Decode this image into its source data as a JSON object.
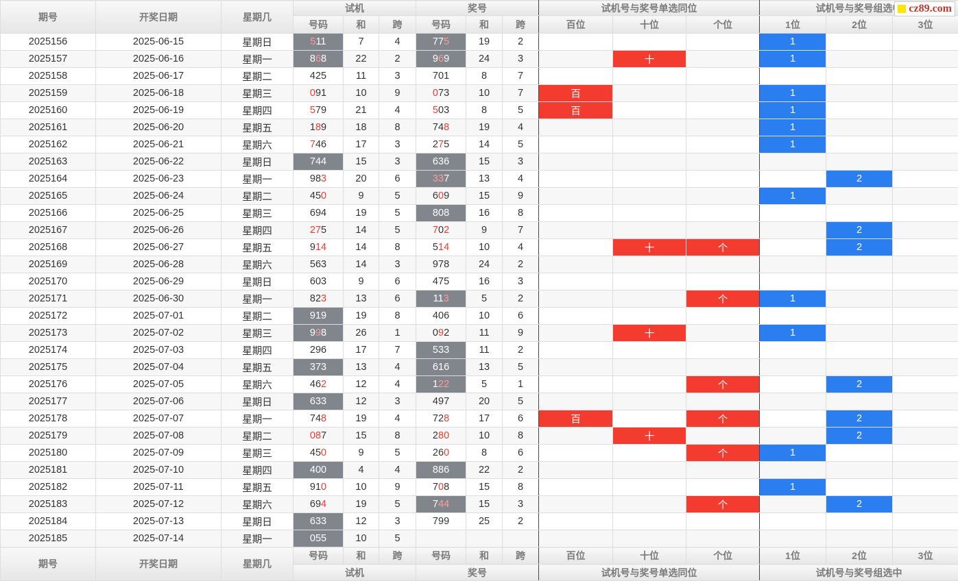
{
  "header": {
    "period": "期号",
    "date": "开奖日期",
    "weekday": "星期几",
    "trial_group": "试机",
    "draw_group": "奖号",
    "single_group": "试机号与奖号单选同位",
    "combo_group": "试机号与奖号组选中",
    "sub": {
      "code": "号码",
      "sum": "和",
      "span": "跨",
      "hundreds": "百位",
      "tens": "十位",
      "units": "个位",
      "one": "1位",
      "two": "2位",
      "three": "3位"
    }
  },
  "watermark": "cz89.com",
  "colors": {
    "match_red": "#f43b2f",
    "combo_blue": "#2a7ef0",
    "cell_gray": "#80868b"
  },
  "rows": [
    {
      "period": "2025156",
      "date": "2025-06-15",
      "weekday": "星期日",
      "t_code": "511",
      "t_hl": [
        0
      ],
      "t_sum": "7",
      "t_span": "4",
      "t_gray": true,
      "d_code": "775",
      "d_hl": [
        2
      ],
      "d_sum": "19",
      "d_span": "2",
      "d_gray": true,
      "s_h": "",
      "s_t": "",
      "s_u": "",
      "c1": "1",
      "c2": "",
      "c3": ""
    },
    {
      "period": "2025157",
      "date": "2025-06-16",
      "weekday": "星期一",
      "t_code": "868",
      "t_hl": [
        1
      ],
      "t_sum": "22",
      "t_span": "2",
      "t_gray": true,
      "d_code": "969",
      "d_hl": [
        1
      ],
      "d_sum": "24",
      "d_span": "3",
      "d_gray": true,
      "s_h": "",
      "s_t": "十",
      "s_u": "",
      "c1": "1",
      "c2": "",
      "c3": ""
    },
    {
      "period": "2025158",
      "date": "2025-06-17",
      "weekday": "星期二",
      "t_code": "425",
      "t_hl": [],
      "t_sum": "11",
      "t_span": "3",
      "t_gray": false,
      "d_code": "701",
      "d_hl": [],
      "d_sum": "8",
      "d_span": "7",
      "d_gray": false,
      "s_h": "",
      "s_t": "",
      "s_u": "",
      "c1": "",
      "c2": "",
      "c3": ""
    },
    {
      "period": "2025159",
      "date": "2025-06-18",
      "weekday": "星期三",
      "t_code": "091",
      "t_hl": [
        0
      ],
      "t_sum": "10",
      "t_span": "9",
      "t_gray": false,
      "d_code": "073",
      "d_hl": [
        0
      ],
      "d_sum": "10",
      "d_span": "7",
      "d_gray": false,
      "s_h": "百",
      "s_t": "",
      "s_u": "",
      "c1": "1",
      "c2": "",
      "c3": ""
    },
    {
      "period": "2025160",
      "date": "2025-06-19",
      "weekday": "星期四",
      "t_code": "579",
      "t_hl": [
        0
      ],
      "t_sum": "21",
      "t_span": "4",
      "t_gray": false,
      "d_code": "503",
      "d_hl": [
        0
      ],
      "d_sum": "8",
      "d_span": "5",
      "d_gray": false,
      "s_h": "百",
      "s_t": "",
      "s_u": "",
      "c1": "1",
      "c2": "",
      "c3": ""
    },
    {
      "period": "2025161",
      "date": "2025-06-20",
      "weekday": "星期五",
      "t_code": "189",
      "t_hl": [
        1
      ],
      "t_sum": "18",
      "t_span": "8",
      "t_gray": false,
      "d_code": "748",
      "d_hl": [
        2
      ],
      "d_sum": "19",
      "d_span": "4",
      "d_gray": false,
      "s_h": "",
      "s_t": "",
      "s_u": "",
      "c1": "1",
      "c2": "",
      "c3": ""
    },
    {
      "period": "2025162",
      "date": "2025-06-21",
      "weekday": "星期六",
      "t_code": "746",
      "t_hl": [
        0
      ],
      "t_sum": "17",
      "t_span": "3",
      "t_gray": false,
      "d_code": "275",
      "d_hl": [
        1
      ],
      "d_sum": "14",
      "d_span": "5",
      "d_gray": false,
      "s_h": "",
      "s_t": "",
      "s_u": "",
      "c1": "1",
      "c2": "",
      "c3": ""
    },
    {
      "period": "2025163",
      "date": "2025-06-22",
      "weekday": "星期日",
      "t_code": "744",
      "t_hl": [],
      "t_sum": "15",
      "t_span": "3",
      "t_gray": true,
      "d_code": "636",
      "d_hl": [],
      "d_sum": "15",
      "d_span": "3",
      "d_gray": true,
      "s_h": "",
      "s_t": "",
      "s_u": "",
      "c1": "",
      "c2": "",
      "c3": ""
    },
    {
      "period": "2025164",
      "date": "2025-06-23",
      "weekday": "星期一",
      "t_code": "983",
      "t_hl": [
        2
      ],
      "t_sum": "20",
      "t_span": "6",
      "t_gray": false,
      "d_code": "337",
      "d_hl": [
        0,
        1
      ],
      "d_sum": "13",
      "d_span": "4",
      "d_gray": true,
      "s_h": "",
      "s_t": "",
      "s_u": "",
      "c1": "",
      "c2": "2",
      "c3": ""
    },
    {
      "period": "2025165",
      "date": "2025-06-24",
      "weekday": "星期二",
      "t_code": "450",
      "t_hl": [
        2
      ],
      "t_sum": "9",
      "t_span": "5",
      "t_gray": false,
      "d_code": "609",
      "d_hl": [
        1
      ],
      "d_sum": "15",
      "d_span": "9",
      "d_gray": false,
      "s_h": "",
      "s_t": "",
      "s_u": "",
      "c1": "1",
      "c2": "",
      "c3": ""
    },
    {
      "period": "2025166",
      "date": "2025-06-25",
      "weekday": "星期三",
      "t_code": "694",
      "t_hl": [],
      "t_sum": "19",
      "t_span": "5",
      "t_gray": false,
      "d_code": "808",
      "d_hl": [],
      "d_sum": "16",
      "d_span": "8",
      "d_gray": true,
      "s_h": "",
      "s_t": "",
      "s_u": "",
      "c1": "",
      "c2": "",
      "c3": ""
    },
    {
      "period": "2025167",
      "date": "2025-06-26",
      "weekday": "星期四",
      "t_code": "275",
      "t_hl": [
        0,
        1
      ],
      "t_sum": "14",
      "t_span": "5",
      "t_gray": false,
      "d_code": "702",
      "d_hl": [
        0,
        2
      ],
      "d_sum": "9",
      "d_span": "7",
      "d_gray": false,
      "s_h": "",
      "s_t": "",
      "s_u": "",
      "c1": "",
      "c2": "2",
      "c3": ""
    },
    {
      "period": "2025168",
      "date": "2025-06-27",
      "weekday": "星期五",
      "t_code": "914",
      "t_hl": [
        1,
        2
      ],
      "t_sum": "14",
      "t_span": "8",
      "t_gray": false,
      "d_code": "514",
      "d_hl": [
        1,
        2
      ],
      "d_sum": "10",
      "d_span": "4",
      "d_gray": false,
      "s_h": "",
      "s_t": "十",
      "s_u": "个",
      "c1": "",
      "c2": "2",
      "c3": ""
    },
    {
      "period": "2025169",
      "date": "2025-06-28",
      "weekday": "星期六",
      "t_code": "563",
      "t_hl": [],
      "t_sum": "14",
      "t_span": "3",
      "t_gray": false,
      "d_code": "978",
      "d_hl": [],
      "d_sum": "24",
      "d_span": "2",
      "d_gray": false,
      "s_h": "",
      "s_t": "",
      "s_u": "",
      "c1": "",
      "c2": "",
      "c3": ""
    },
    {
      "period": "2025170",
      "date": "2025-06-29",
      "weekday": "星期日",
      "t_code": "603",
      "t_hl": [],
      "t_sum": "9",
      "t_span": "6",
      "t_gray": false,
      "d_code": "475",
      "d_hl": [],
      "d_sum": "16",
      "d_span": "3",
      "d_gray": false,
      "s_h": "",
      "s_t": "",
      "s_u": "",
      "c1": "",
      "c2": "",
      "c3": ""
    },
    {
      "period": "2025171",
      "date": "2025-06-30",
      "weekday": "星期一",
      "t_code": "823",
      "t_hl": [
        2
      ],
      "t_sum": "13",
      "t_span": "6",
      "t_gray": false,
      "d_code": "113",
      "d_hl": [
        2
      ],
      "d_sum": "5",
      "d_span": "2",
      "d_gray": true,
      "s_h": "",
      "s_t": "",
      "s_u": "个",
      "c1": "1",
      "c2": "",
      "c3": ""
    },
    {
      "period": "2025172",
      "date": "2025-07-01",
      "weekday": "星期二",
      "t_code": "919",
      "t_hl": [],
      "t_sum": "19",
      "t_span": "8",
      "t_gray": true,
      "d_code": "406",
      "d_hl": [],
      "d_sum": "10",
      "d_span": "6",
      "d_gray": false,
      "s_h": "",
      "s_t": "",
      "s_u": "",
      "c1": "",
      "c2": "",
      "c3": ""
    },
    {
      "period": "2025173",
      "date": "2025-07-02",
      "weekday": "星期三",
      "t_code": "998",
      "t_hl": [
        1
      ],
      "t_sum": "26",
      "t_span": "1",
      "t_gray": true,
      "d_code": "092",
      "d_hl": [
        1
      ],
      "d_sum": "11",
      "d_span": "9",
      "d_gray": false,
      "s_h": "",
      "s_t": "十",
      "s_u": "",
      "c1": "1",
      "c2": "",
      "c3": ""
    },
    {
      "period": "2025174",
      "date": "2025-07-03",
      "weekday": "星期四",
      "t_code": "296",
      "t_hl": [],
      "t_sum": "17",
      "t_span": "7",
      "t_gray": false,
      "d_code": "533",
      "d_hl": [],
      "d_sum": "11",
      "d_span": "2",
      "d_gray": true,
      "s_h": "",
      "s_t": "",
      "s_u": "",
      "c1": "",
      "c2": "",
      "c3": ""
    },
    {
      "period": "2025175",
      "date": "2025-07-04",
      "weekday": "星期五",
      "t_code": "373",
      "t_hl": [],
      "t_sum": "13",
      "t_span": "4",
      "t_gray": true,
      "d_code": "616",
      "d_hl": [],
      "d_sum": "13",
      "d_span": "5",
      "d_gray": true,
      "s_h": "",
      "s_t": "",
      "s_u": "",
      "c1": "",
      "c2": "",
      "c3": ""
    },
    {
      "period": "2025176",
      "date": "2025-07-05",
      "weekday": "星期六",
      "t_code": "462",
      "t_hl": [
        2
      ],
      "t_sum": "12",
      "t_span": "4",
      "t_gray": false,
      "d_code": "122",
      "d_hl": [
        1,
        2
      ],
      "d_sum": "5",
      "d_span": "1",
      "d_gray": true,
      "s_h": "",
      "s_t": "",
      "s_u": "个",
      "c1": "",
      "c2": "2",
      "c3": ""
    },
    {
      "period": "2025177",
      "date": "2025-07-06",
      "weekday": "星期日",
      "t_code": "633",
      "t_hl": [],
      "t_sum": "12",
      "t_span": "3",
      "t_gray": true,
      "d_code": "497",
      "d_hl": [],
      "d_sum": "20",
      "d_span": "5",
      "d_gray": false,
      "s_h": "",
      "s_t": "",
      "s_u": "",
      "c1": "",
      "c2": "",
      "c3": ""
    },
    {
      "period": "2025178",
      "date": "2025-07-07",
      "weekday": "星期一",
      "t_code": "748",
      "t_hl": [
        2
      ],
      "t_sum": "19",
      "t_span": "4",
      "t_gray": false,
      "d_code": "728",
      "d_hl": [
        2
      ],
      "d_sum": "17",
      "d_span": "6",
      "d_gray": false,
      "s_h": "百",
      "s_t": "",
      "s_u": "个",
      "c1": "",
      "c2": "2",
      "c3": ""
    },
    {
      "period": "2025179",
      "date": "2025-07-08",
      "weekday": "星期二",
      "t_code": "087",
      "t_hl": [
        0,
        1
      ],
      "t_sum": "15",
      "t_span": "8",
      "t_gray": false,
      "d_code": "280",
      "d_hl": [
        1,
        2
      ],
      "d_sum": "10",
      "d_span": "8",
      "d_gray": false,
      "s_h": "",
      "s_t": "十",
      "s_u": "",
      "c1": "",
      "c2": "2",
      "c3": ""
    },
    {
      "period": "2025180",
      "date": "2025-07-09",
      "weekday": "星期三",
      "t_code": "450",
      "t_hl": [
        2
      ],
      "t_sum": "9",
      "t_span": "5",
      "t_gray": false,
      "d_code": "260",
      "d_hl": [
        2
      ],
      "d_sum": "8",
      "d_span": "6",
      "d_gray": false,
      "s_h": "",
      "s_t": "",
      "s_u": "个",
      "c1": "1",
      "c2": "",
      "c3": ""
    },
    {
      "period": "2025181",
      "date": "2025-07-10",
      "weekday": "星期四",
      "t_code": "400",
      "t_hl": [],
      "t_sum": "4",
      "t_span": "4",
      "t_gray": true,
      "d_code": "886",
      "d_hl": [],
      "d_sum": "22",
      "d_span": "2",
      "d_gray": true,
      "s_h": "",
      "s_t": "",
      "s_u": "",
      "c1": "",
      "c2": "",
      "c3": ""
    },
    {
      "period": "2025182",
      "date": "2025-07-11",
      "weekday": "星期五",
      "t_code": "910",
      "t_hl": [
        2
      ],
      "t_sum": "10",
      "t_span": "9",
      "t_gray": false,
      "d_code": "708",
      "d_hl": [
        1
      ],
      "d_sum": "15",
      "d_span": "8",
      "d_gray": false,
      "s_h": "",
      "s_t": "",
      "s_u": "",
      "c1": "1",
      "c2": "",
      "c3": ""
    },
    {
      "period": "2025183",
      "date": "2025-07-12",
      "weekday": "星期六",
      "t_code": "694",
      "t_hl": [
        2
      ],
      "t_sum": "19",
      "t_span": "5",
      "t_gray": false,
      "d_code": "744",
      "d_hl": [
        1,
        2
      ],
      "d_sum": "15",
      "d_span": "3",
      "d_gray": true,
      "s_h": "",
      "s_t": "",
      "s_u": "个",
      "c1": "",
      "c2": "2",
      "c3": ""
    },
    {
      "period": "2025184",
      "date": "2025-07-13",
      "weekday": "星期日",
      "t_code": "633",
      "t_hl": [],
      "t_sum": "12",
      "t_span": "3",
      "t_gray": true,
      "d_code": "799",
      "d_hl": [],
      "d_sum": "25",
      "d_span": "2",
      "d_gray": false,
      "s_h": "",
      "s_t": "",
      "s_u": "",
      "c1": "",
      "c2": "",
      "c3": ""
    },
    {
      "period": "2025185",
      "date": "2025-07-14",
      "weekday": "星期一",
      "t_code": "055",
      "t_hl": [],
      "t_sum": "10",
      "t_span": "5",
      "t_gray": true,
      "d_code": "",
      "d_hl": [],
      "d_sum": "",
      "d_span": "",
      "d_gray": false,
      "s_h": "",
      "s_t": "",
      "s_u": "",
      "c1": "",
      "c2": "",
      "c3": ""
    }
  ]
}
